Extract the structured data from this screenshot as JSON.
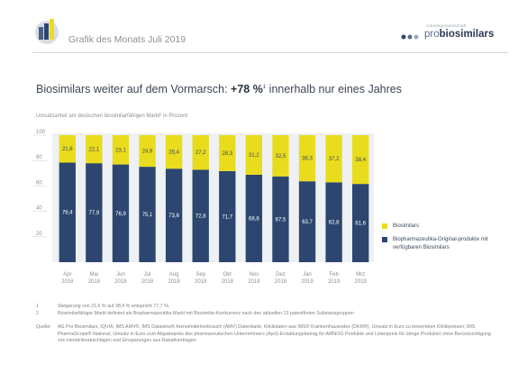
{
  "header": {
    "title": "Grafik des Monats Juli 2019",
    "brand_small": "Arbeitsgemeinschaft",
    "brand_pro": "pro",
    "brand_bio": "biosimilars"
  },
  "main": {
    "title_prefix": "Biosimilars weiter auf dem Vormarsch: ",
    "title_highlight": "+78 %",
    "title_sup": "1",
    "title_suffix": " innerhalb nur eines Jahres",
    "subtitle": "Umsatzanteil am deutschen biosimilarfähigen Markt² in Prozent"
  },
  "colors": {
    "yellow": "#e8dc1c",
    "navy": "#2c4670",
    "plot_bg": "#eef0f3"
  },
  "chart_data": {
    "type": "bar",
    "stacked": true,
    "categories": [
      [
        "Apr",
        "2018"
      ],
      [
        "Mai",
        "2018"
      ],
      [
        "Jun",
        "2018"
      ],
      [
        "Jul",
        "2018"
      ],
      [
        "Aug",
        "2018"
      ],
      [
        "Sep",
        "2018"
      ],
      [
        "Okt",
        "2018"
      ],
      [
        "Nov",
        "2018"
      ],
      [
        "Dez",
        "2018"
      ],
      [
        "Jan",
        "2019"
      ],
      [
        "Feb",
        "2019"
      ],
      [
        "Mrz",
        "2019"
      ]
    ],
    "series": [
      {
        "name": "Biopharmazeutika-Original-produkte mit verfügbaren Biosimilars",
        "color": "#2c4670",
        "values": [
          78.4,
          77.9,
          76.9,
          75.1,
          73.6,
          72.8,
          71.7,
          68.8,
          67.5,
          63.7,
          62.8,
          61.6
        ],
        "labels": [
          "78,4",
          "77,9",
          "76,9",
          "75,1",
          "73,6",
          "72,8",
          "71,7",
          "68,8",
          "67,5",
          "63,7",
          "62,8",
          "61,6"
        ]
      },
      {
        "name": "Biosimilars",
        "color": "#e8dc1c",
        "values": [
          21.6,
          22.1,
          23.1,
          24.9,
          26.4,
          27.2,
          28.3,
          31.2,
          32.5,
          36.3,
          37.2,
          38.4
        ],
        "labels": [
          "21,6",
          "22,1",
          "23,1",
          "24,9",
          "26,4",
          "27,2",
          "28,3",
          "31,2",
          "32,5",
          "36,3",
          "37,2",
          "38,4"
        ]
      }
    ],
    "ylim": [
      0,
      100
    ],
    "yticks": [
      "20",
      "40",
      "60",
      "80",
      "100"
    ],
    "grid": false,
    "legend_position": "right"
  },
  "legend": [
    {
      "label": "Biosimilars",
      "color": "#e8dc1c"
    },
    {
      "label": "Biopharmazeutika-Original-produkte mit verfügbaren Biosimilars",
      "color": "#2c4670"
    }
  ],
  "footnotes": [
    {
      "num": "1",
      "text": "Steigerung von 21,6 % auf 38,4 % entspricht 77,7 %."
    },
    {
      "num": "2",
      "text": "Biosimilarfähiger Markt definiert als Biopharmazeutika-Markt mit Biosimilar-Konkurrenz nach den aktuellen 13 patentfreien Substanzgruppen"
    }
  ],
  "source": {
    "label": "Quelle:",
    "text": "AG Pro Biosimilars, IQVIA, IMS AMV®, IMS Dataview® Arzneimittelverbrauch (AMV) Datenbank; Klinikdaten aus IMS® Krankenhausindex (DKM®), Umsatz in Euro zu bewerteten Klinikpreisen; IMS PharmaScope® National, Umsatz in Euro zum Abgabepreis des pharmazeutischen Unternehmers (ApU)-Erstattungsbetrag für AMNOG Produkte und Listenpreis für übrige Produkte) ohne Berücksichtigung von Herstellerabschlägen und Einsparungen aus Rabattverträgen"
  }
}
